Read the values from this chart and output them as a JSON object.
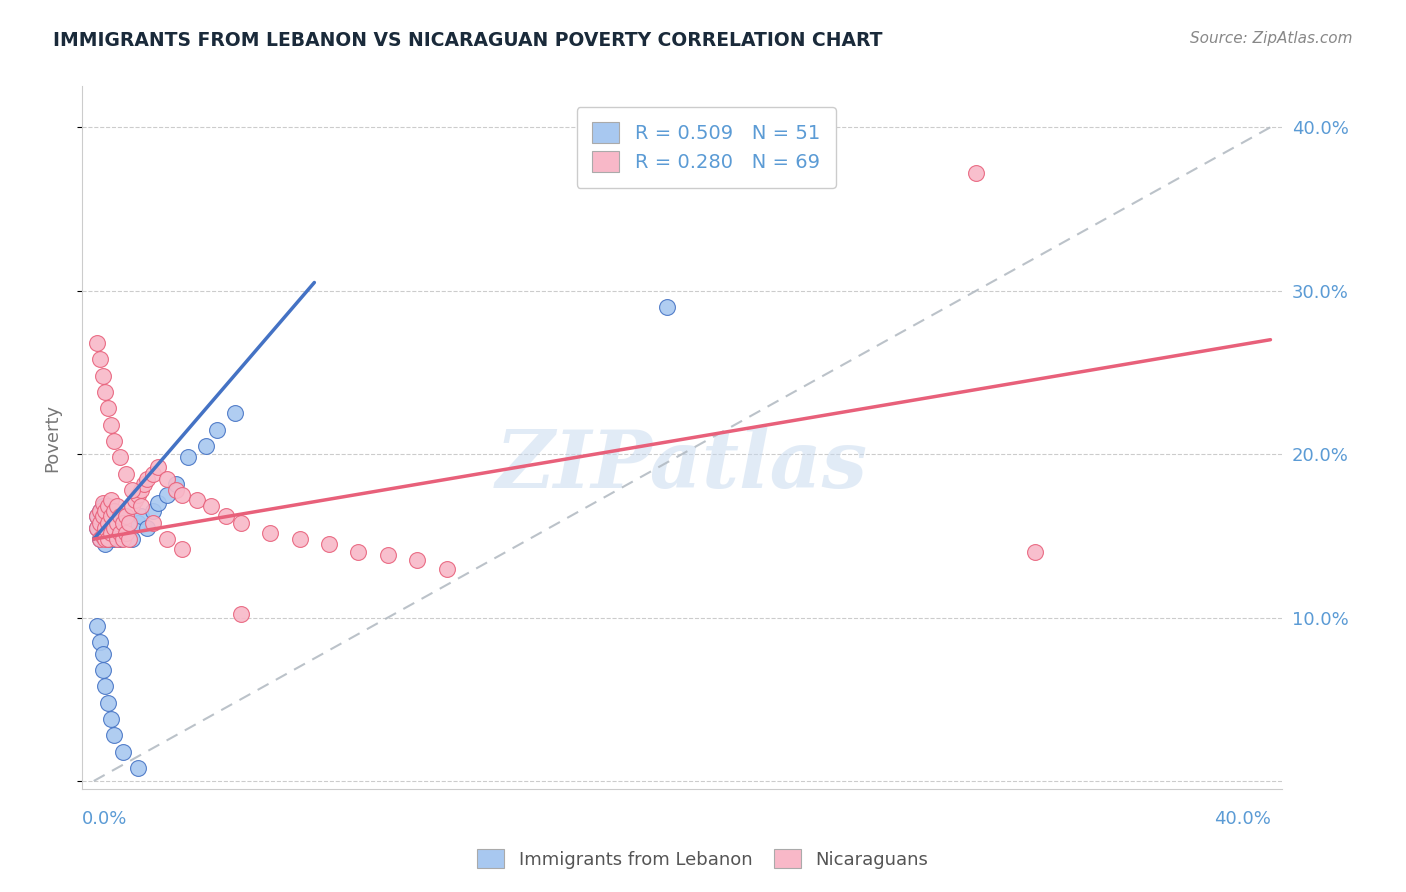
{
  "title": "IMMIGRANTS FROM LEBANON VS NICARAGUAN POVERTY CORRELATION CHART",
  "source": "Source: ZipAtlas.com",
  "ylabel": "Poverty",
  "xlim": [
    0.0,
    0.4
  ],
  "ylim": [
    0.0,
    0.42
  ],
  "yticks": [
    0.0,
    0.1,
    0.2,
    0.3,
    0.4
  ],
  "ytick_labels_right": [
    "",
    "10.0%",
    "20.0%",
    "30.0%",
    "40.0%"
  ],
  "color_blue_fill": "#A8C8F0",
  "color_pink_fill": "#F8B8C8",
  "color_blue_line": "#4472C4",
  "color_pink_line": "#E8607A",
  "color_gray_dash": "#B0B8C0",
  "color_title": "#1A2A3A",
  "color_source": "#888888",
  "color_axis_val": "#5B9BD5",
  "color_ylabel": "#777777",
  "watermark": "ZIPatlas",
  "blue_line_x": [
    0.0,
    0.075
  ],
  "blue_line_y": [
    0.148,
    0.305
  ],
  "pink_line_x": [
    0.0,
    0.4
  ],
  "pink_line_y": [
    0.148,
    0.27
  ],
  "blue_x": [
    0.001,
    0.001,
    0.002,
    0.002,
    0.002,
    0.003,
    0.003,
    0.003,
    0.003,
    0.004,
    0.004,
    0.004,
    0.004,
    0.005,
    0.005,
    0.005,
    0.006,
    0.006,
    0.007,
    0.007,
    0.008,
    0.008,
    0.009,
    0.009,
    0.01,
    0.01,
    0.011,
    0.012,
    0.013,
    0.015,
    0.016,
    0.018,
    0.02,
    0.022,
    0.025,
    0.028,
    0.032,
    0.038,
    0.042,
    0.048,
    0.001,
    0.002,
    0.003,
    0.003,
    0.004,
    0.005,
    0.006,
    0.007,
    0.01,
    0.015,
    0.195
  ],
  "blue_y": [
    0.155,
    0.162,
    0.148,
    0.158,
    0.165,
    0.15,
    0.155,
    0.16,
    0.168,
    0.145,
    0.152,
    0.158,
    0.165,
    0.148,
    0.155,
    0.162,
    0.152,
    0.16,
    0.148,
    0.155,
    0.15,
    0.158,
    0.148,
    0.155,
    0.152,
    0.16,
    0.155,
    0.158,
    0.148,
    0.158,
    0.162,
    0.155,
    0.165,
    0.17,
    0.175,
    0.182,
    0.198,
    0.205,
    0.215,
    0.225,
    0.095,
    0.085,
    0.078,
    0.068,
    0.058,
    0.048,
    0.038,
    0.028,
    0.018,
    0.008,
    0.29
  ],
  "pink_x": [
    0.001,
    0.001,
    0.002,
    0.002,
    0.002,
    0.003,
    0.003,
    0.003,
    0.004,
    0.004,
    0.004,
    0.005,
    0.005,
    0.005,
    0.006,
    0.006,
    0.006,
    0.007,
    0.007,
    0.008,
    0.008,
    0.008,
    0.009,
    0.009,
    0.01,
    0.01,
    0.011,
    0.011,
    0.012,
    0.012,
    0.013,
    0.014,
    0.015,
    0.016,
    0.017,
    0.018,
    0.02,
    0.022,
    0.025,
    0.028,
    0.03,
    0.035,
    0.04,
    0.045,
    0.05,
    0.06,
    0.07,
    0.08,
    0.09,
    0.1,
    0.11,
    0.12,
    0.001,
    0.002,
    0.003,
    0.004,
    0.005,
    0.006,
    0.007,
    0.009,
    0.011,
    0.013,
    0.016,
    0.02,
    0.025,
    0.03,
    0.3,
    0.05,
    0.32
  ],
  "pink_y": [
    0.155,
    0.162,
    0.148,
    0.158,
    0.165,
    0.15,
    0.162,
    0.17,
    0.148,
    0.155,
    0.165,
    0.148,
    0.158,
    0.168,
    0.152,
    0.162,
    0.172,
    0.155,
    0.165,
    0.148,
    0.158,
    0.168,
    0.152,
    0.162,
    0.148,
    0.158,
    0.152,
    0.162,
    0.148,
    0.158,
    0.168,
    0.172,
    0.175,
    0.178,
    0.182,
    0.185,
    0.188,
    0.192,
    0.185,
    0.178,
    0.175,
    0.172,
    0.168,
    0.162,
    0.158,
    0.152,
    0.148,
    0.145,
    0.14,
    0.138,
    0.135,
    0.13,
    0.268,
    0.258,
    0.248,
    0.238,
    0.228,
    0.218,
    0.208,
    0.198,
    0.188,
    0.178,
    0.168,
    0.158,
    0.148,
    0.142,
    0.372,
    0.102,
    0.14
  ]
}
